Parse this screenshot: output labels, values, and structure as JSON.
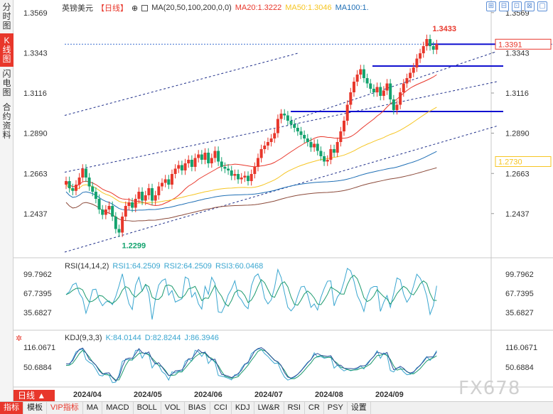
{
  "left_tabs": [
    {
      "label": "分时图",
      "active": false
    },
    {
      "label": "K线图",
      "active": true
    },
    {
      "label": "闪电图",
      "active": false
    },
    {
      "label": "合约资料",
      "active": false
    }
  ],
  "header": {
    "symbol": "英镑美元",
    "period": "【日线】",
    "ma_label": "MA(20,50,100,200,0,0)",
    "ma20": "MA20:1.3222",
    "ma50": "MA50:1.3046",
    "ma100": "MA100:1.",
    "window_buttons": [
      "⊞",
      "⊟",
      "⊡",
      "⊠",
      "▢"
    ]
  },
  "rsi_header": {
    "label": "RSI(14,14,2)",
    "rsi1": "RSI1:64.2509",
    "rsi2": "RSI2:64.2509",
    "rsi3": "RSI3:60.0468"
  },
  "kdj_header": {
    "label": "KDJ(9,3,3)",
    "k": "K:84.0144",
    "d": "D:82.8244",
    "j": "J:86.3946"
  },
  "period_tab": "日线 ▲",
  "bottom_tabs": [
    {
      "label": "指标",
      "active": true
    },
    {
      "label": "模板"
    },
    {
      "label": "VIP指标",
      "vip": true
    },
    {
      "label": "MA"
    },
    {
      "label": "MACD"
    },
    {
      "label": "BOLL"
    },
    {
      "label": "VOL"
    },
    {
      "label": "BIAS"
    },
    {
      "label": "CCI"
    },
    {
      "label": "KDJ"
    },
    {
      "label": "LW&R"
    },
    {
      "label": "RSI"
    },
    {
      "label": "CR"
    },
    {
      "label": "PSY"
    },
    {
      "label": "设置"
    }
  ],
  "watermark": "FX678",
  "colors": {
    "up": "#e8372b",
    "down": "#13a36e",
    "ma20": "#e8372b",
    "ma50": "#f6c522",
    "ma100": "#1f6fb5",
    "ma200": "#8b4a3a",
    "rsi": "#3aa6d0",
    "kdj": "#3aa6d0"
  },
  "chart_data": {
    "type": "candlestick",
    "instrument": "英镑美元",
    "x_tick_labels": [
      "2024/04",
      "2024/05",
      "2024/06",
      "2024/07",
      "2024/08",
      "2024/09"
    ],
    "y_tick_labels": [
      "1.3569",
      "1.3343",
      "1.3116",
      "1.2890",
      "1.2663",
      "1.2437"
    ],
    "ylim": [
      1.22,
      1.36
    ],
    "price_labels": {
      "high": "1.3433",
      "low": "1.2299",
      "current": "1.3391",
      "secondary": "1.2730"
    },
    "current_price": 1.3391,
    "secondary_price": 1.273,
    "high_point": 1.3433,
    "low_point": 1.2299,
    "horizontal_levels": [
      1.3391,
      1.3268,
      1.3012
    ],
    "closes": [
      1.262,
      1.258,
      1.2565,
      1.26,
      1.264,
      1.269,
      1.264,
      1.259,
      1.256,
      1.252,
      1.246,
      1.243,
      1.246,
      1.248,
      1.242,
      1.235,
      1.233,
      1.242,
      1.248,
      1.25,
      1.247,
      1.252,
      1.256,
      1.251,
      1.254,
      1.258,
      1.251,
      1.254,
      1.259,
      1.261,
      1.263,
      1.26,
      1.266,
      1.269,
      1.271,
      1.268,
      1.272,
      1.274,
      1.27,
      1.275,
      1.277,
      1.274,
      1.278,
      1.272,
      1.275,
      1.279,
      1.273,
      1.27,
      1.269,
      1.268,
      1.265,
      1.266,
      1.263,
      1.264,
      1.265,
      1.262,
      1.266,
      1.27,
      1.275,
      1.28,
      1.282,
      1.284,
      1.286,
      1.289,
      1.297,
      1.3,
      1.299,
      1.296,
      1.294,
      1.292,
      1.29,
      1.288,
      1.286,
      1.284,
      1.281,
      1.283,
      1.279,
      1.276,
      1.273,
      1.274,
      1.28,
      1.278,
      1.284,
      1.29,
      1.296,
      1.305,
      1.312,
      1.318,
      1.322,
      1.325,
      1.32,
      1.317,
      1.314,
      1.312,
      1.315,
      1.31,
      1.313,
      1.317,
      1.308,
      1.302,
      1.305,
      1.312,
      1.317,
      1.32,
      1.323,
      1.326,
      1.331,
      1.334,
      1.338,
      1.342,
      1.338,
      1.336,
      1.3391
    ],
    "ma_series": [
      "MA20",
      "MA50",
      "MA100",
      "MA200"
    ],
    "rsi": {
      "label": "RSI(14,14,2)",
      "rsi1": 64.2509,
      "rsi2": 64.2509,
      "rsi3": 60.0468,
      "y_tick_labels": [
        "99.7962",
        "67.7395",
        "35.6827"
      ]
    },
    "kdj": {
      "label": "KDJ(9,3,3)",
      "k": 84.0144,
      "d": 82.8244,
      "j": 86.3946,
      "y_tick_labels": [
        "116.0671",
        "50.6884"
      ]
    }
  }
}
